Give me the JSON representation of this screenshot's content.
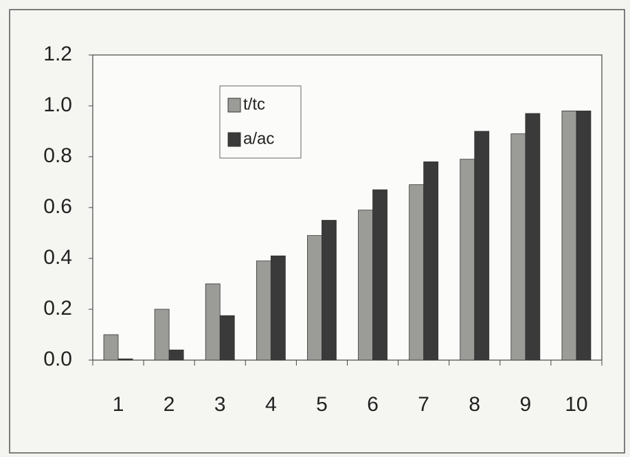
{
  "chart_data": {
    "type": "bar",
    "categories": [
      "1",
      "2",
      "3",
      "4",
      "5",
      "6",
      "7",
      "8",
      "9",
      "10"
    ],
    "series": [
      {
        "name": "t/tc",
        "color": "#9b9b98",
        "values": [
          0.1,
          0.2,
          0.3,
          0.39,
          0.49,
          0.59,
          0.69,
          0.79,
          0.89,
          0.98
        ]
      },
      {
        "name": "a/ac",
        "color": "#3a3a3a",
        "values": [
          0.005,
          0.04,
          0.175,
          0.41,
          0.55,
          0.67,
          0.78,
          0.9,
          0.97,
          0.98
        ]
      }
    ],
    "ylim": [
      0,
      1.2
    ],
    "yticks": [
      {
        "value": 0,
        "label": "0.0"
      },
      {
        "value": 0.2,
        "label": "0.2"
      },
      {
        "value": 0.4,
        "label": "0.4"
      },
      {
        "value": 0.6,
        "label": "0.6"
      },
      {
        "value": 0.8,
        "label": "0.8"
      },
      {
        "value": 1,
        "label": "1.0"
      },
      {
        "value": 1.2,
        "label": "1.2"
      }
    ],
    "grid": false,
    "legend": "top-left"
  }
}
